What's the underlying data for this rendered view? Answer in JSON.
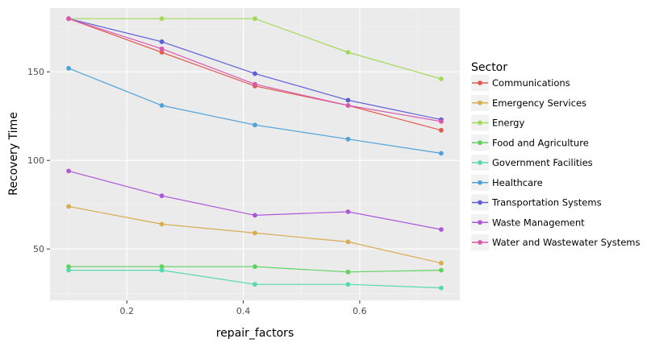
{
  "chart_data": {
    "type": "line",
    "xlabel": "repair_factors",
    "ylabel": "Recovery Time",
    "x": [
      0.1,
      0.26,
      0.42,
      0.58,
      0.74
    ],
    "xlim": [
      0.068,
      0.772
    ],
    "ylim": [
      21,
      186
    ],
    "xticks": [
      0.2,
      0.4,
      0.6
    ],
    "xtick_labels": [
      "0.2",
      "0.4",
      "0.6"
    ],
    "yticks": [
      50,
      100,
      150
    ],
    "ytick_labels": [
      "50",
      "100",
      "150"
    ],
    "grid": true,
    "legend": {
      "title": "Sector",
      "position": "right"
    },
    "series": [
      {
        "name": "Communications",
        "color": "#e05a4e",
        "values": [
          180,
          161,
          142,
          131,
          117
        ]
      },
      {
        "name": "Emergency Services",
        "color": "#d9ad4f",
        "values": [
          74,
          64,
          59,
          54,
          42
        ]
      },
      {
        "name": "Energy",
        "color": "#a3d959",
        "values": [
          180,
          180,
          180,
          161,
          146
        ]
      },
      {
        "name": "Food and Agriculture",
        "color": "#5ed45e",
        "values": [
          40,
          40,
          40,
          37,
          38
        ]
      },
      {
        "name": "Government Facilities",
        "color": "#57d9ad",
        "values": [
          38,
          38,
          30,
          30,
          28
        ]
      },
      {
        "name": "Healthcare",
        "color": "#4fa3d9",
        "values": [
          152,
          131,
          120,
          112,
          104
        ]
      },
      {
        "name": "Transportation Systems",
        "color": "#5e5ed9",
        "values": [
          180,
          167,
          149,
          134,
          123
        ]
      },
      {
        "name": "Waste Management",
        "color": "#ad57d9",
        "values": [
          94,
          80,
          69,
          71,
          61
        ]
      },
      {
        "name": "Water and Wastewater Systems",
        "color": "#d957ad",
        "values": [
          180,
          163,
          143,
          131,
          122
        ]
      }
    ]
  }
}
